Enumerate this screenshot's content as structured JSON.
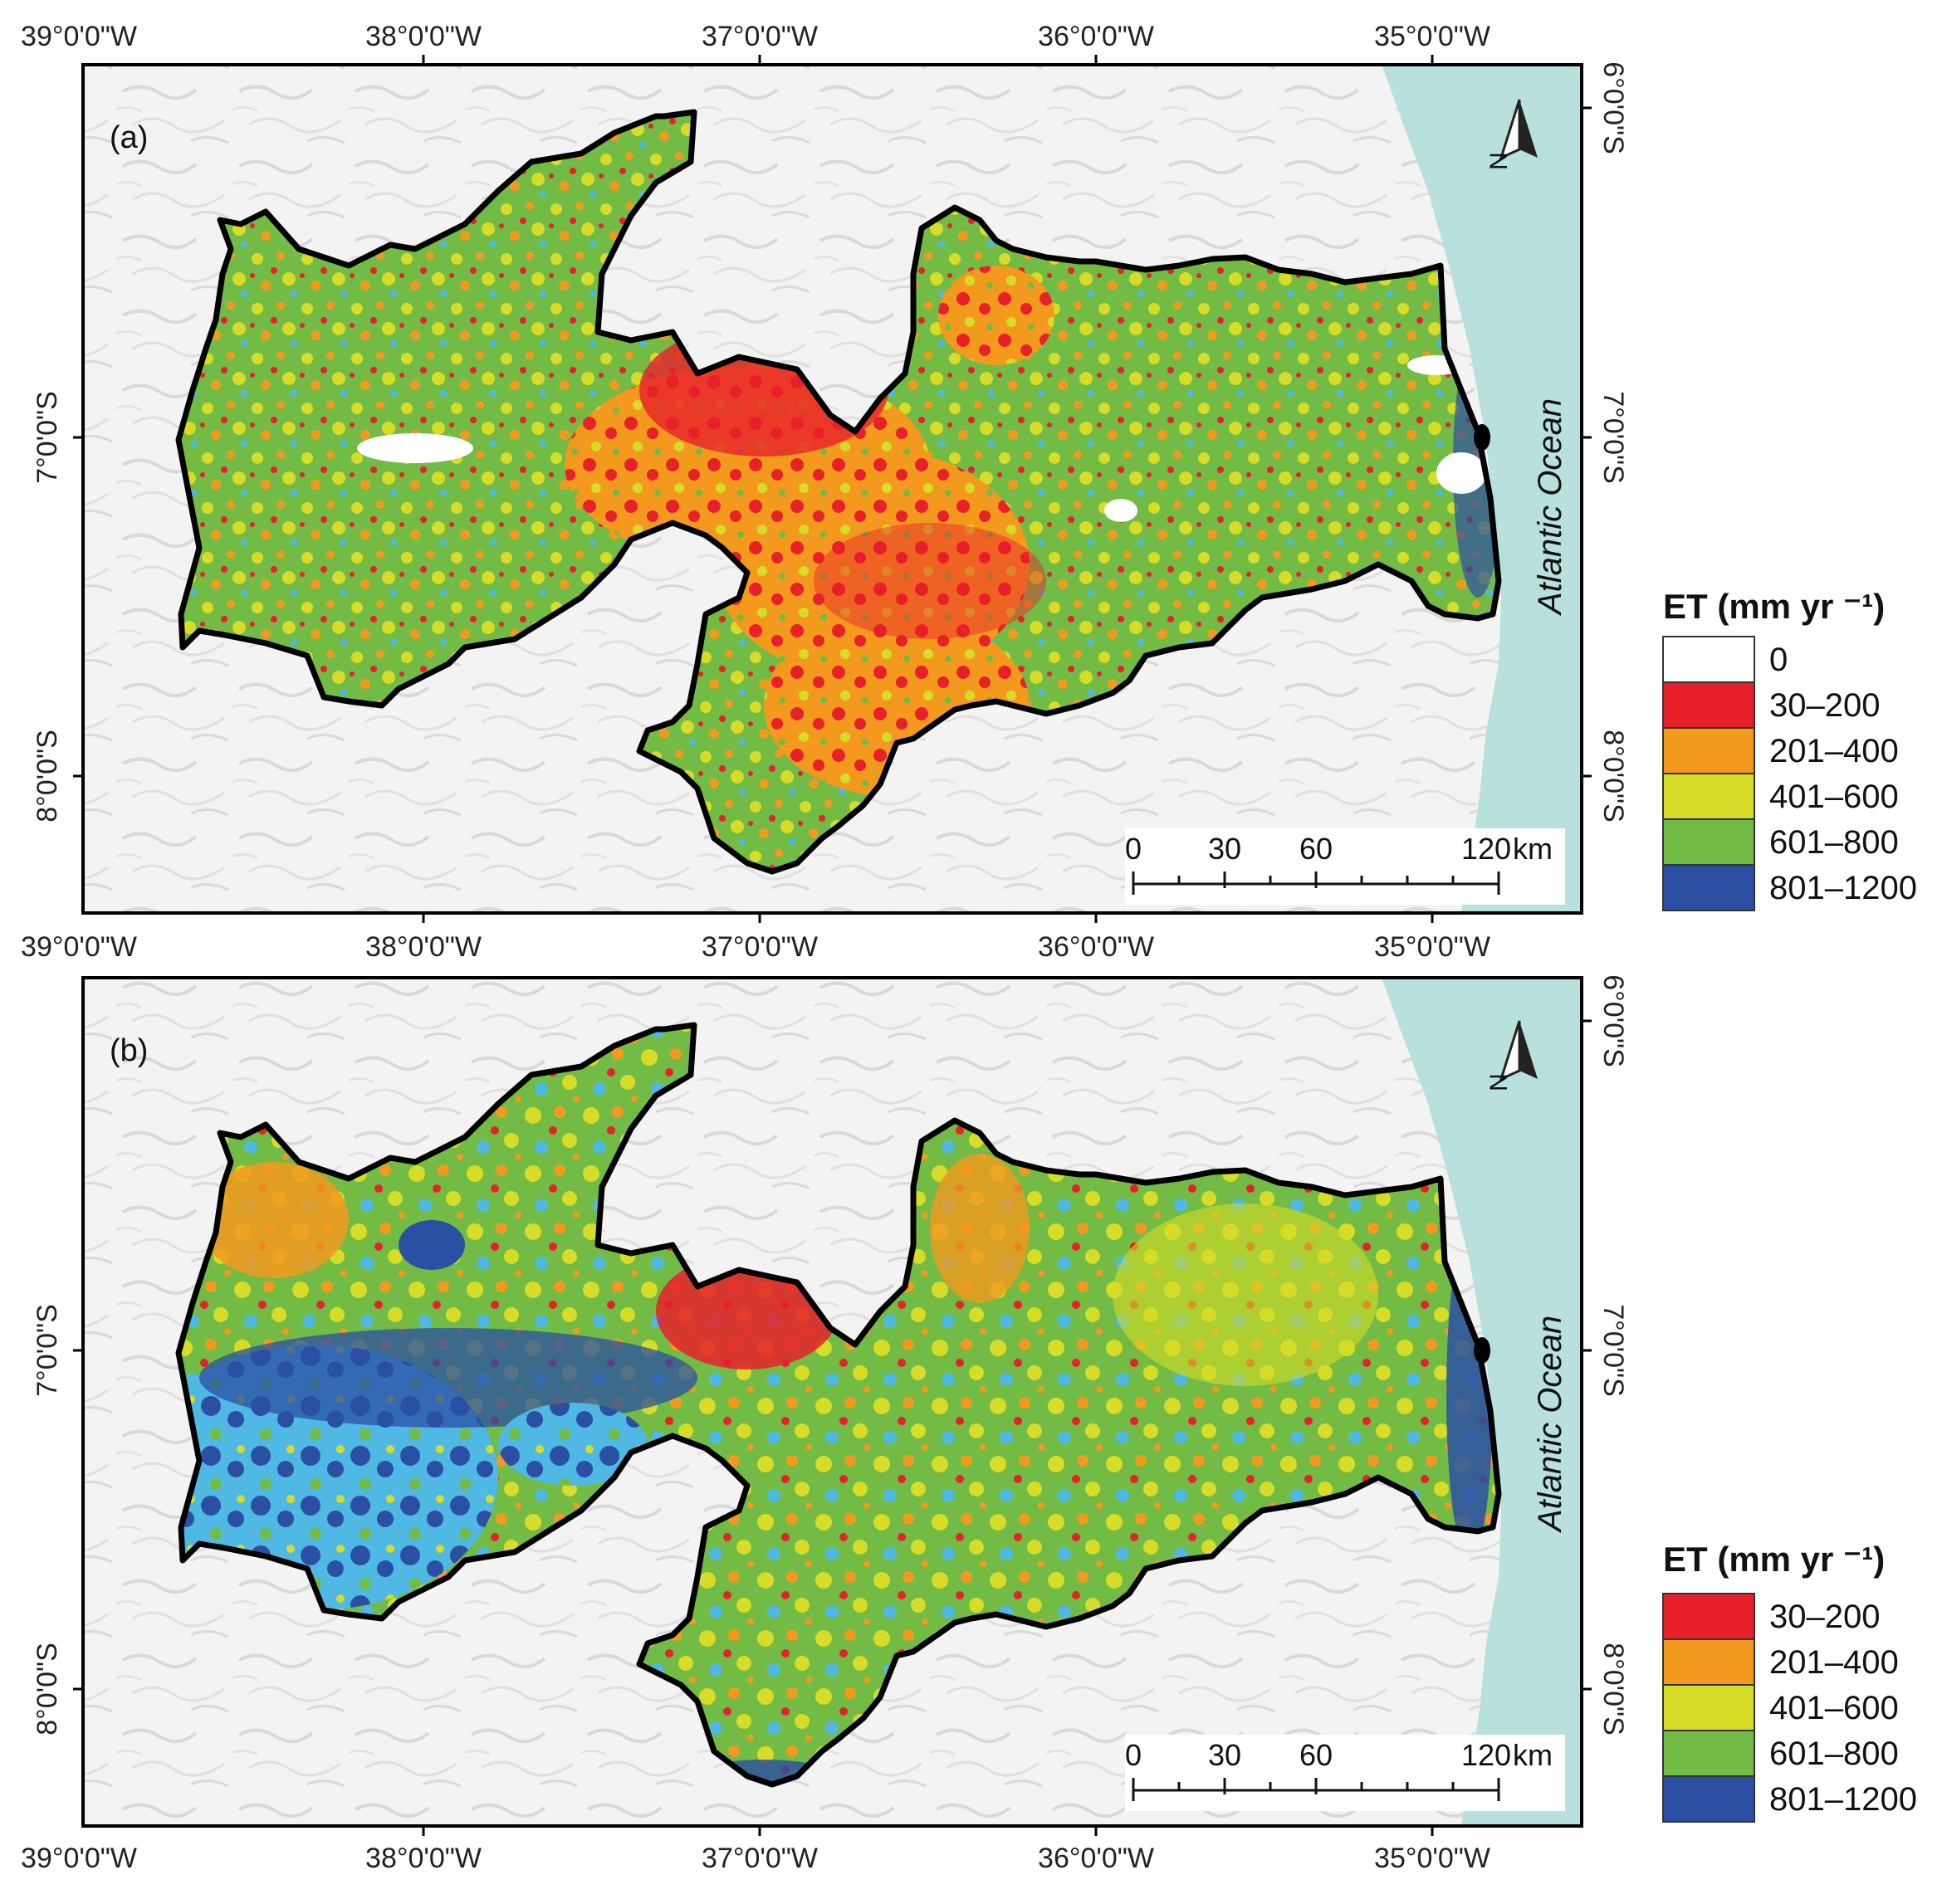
{
  "colors": {
    "ocean": "#b8e0dc",
    "land_background": "#f2f2f2",
    "boundary": "#000000",
    "cls_0": "#ffffff",
    "cls_30_200": "#e8202a",
    "cls_201_400": "#f39a1e",
    "cls_401_600": "#d6dc27",
    "cls_601_800": "#72bb45",
    "cls_801_1200": "#2b4fa3",
    "transition_cyan": "#4fb9e3"
  },
  "axes": {
    "lon_labels": [
      "39°0'0\"W",
      "38°0'0\"W",
      "37°0'0\"W",
      "36°0'0\"W",
      "35°0'0\"W"
    ],
    "lat_labels": [
      "6°0'0\"S",
      "7°0'0\"S",
      "8°0'0\"S"
    ]
  },
  "panels": [
    {
      "label": "(a)",
      "ocean_label": "Atlantic Ocean",
      "north_label": "N",
      "scale": {
        "ticks": [
          "0",
          "30",
          "60",
          "120"
        ],
        "unit": "km"
      },
      "legend": {
        "title": "ET (mm yr ⁻¹)",
        "items": [
          {
            "label": "0",
            "color": "#ffffff"
          },
          {
            "label": "30–200",
            "color": "#e8202a"
          },
          {
            "label": "201–400",
            "color": "#f39a1e"
          },
          {
            "label": "401–600",
            "color": "#d6dc27"
          },
          {
            "label": "601–800",
            "color": "#72bb45"
          },
          {
            "label": "801–1200",
            "color": "#2b4fa3"
          }
        ]
      }
    },
    {
      "label": "(b)",
      "ocean_label": "Atlantic Ocean",
      "north_label": "N",
      "scale": {
        "ticks": [
          "0",
          "30",
          "60",
          "120"
        ],
        "unit": "km"
      },
      "legend": {
        "title": "ET (mm yr ⁻¹)",
        "items": [
          {
            "label": "30–200",
            "color": "#e8202a"
          },
          {
            "label": "201–400",
            "color": "#f39a1e"
          },
          {
            "label": "401–600",
            "color": "#d6dc27"
          },
          {
            "label": "601–800",
            "color": "#72bb45"
          },
          {
            "label": "801–1200",
            "color": "#2b4fa3"
          }
        ]
      }
    }
  ]
}
